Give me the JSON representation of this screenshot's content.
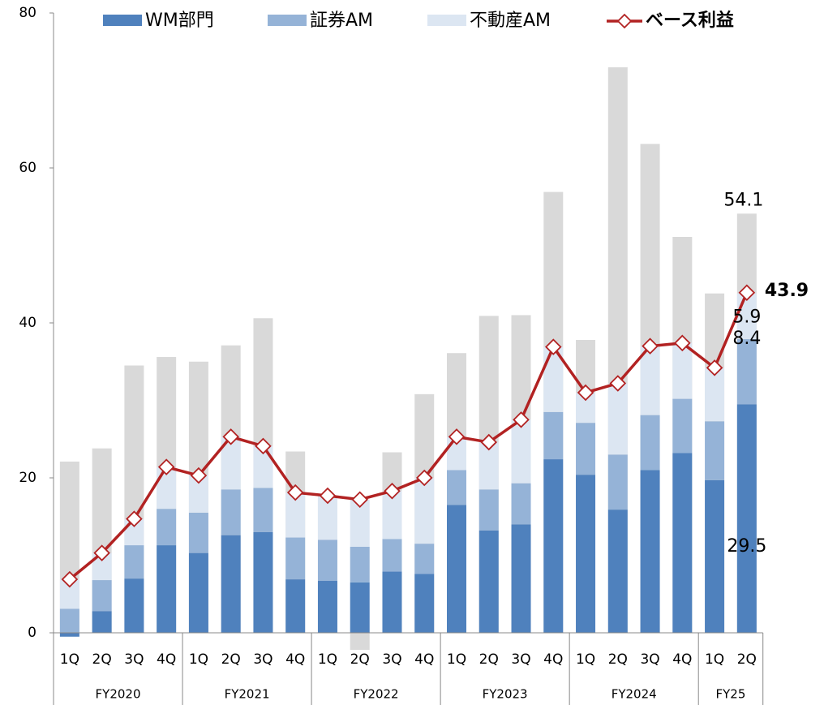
{
  "chart_data": {
    "type": "bar",
    "groups": [
      {
        "name": "FY2020",
        "categories": [
          "1Q",
          "2Q",
          "3Q",
          "4Q"
        ]
      },
      {
        "name": "FY2021",
        "categories": [
          "1Q",
          "2Q",
          "3Q",
          "4Q"
        ]
      },
      {
        "name": "FY2022",
        "categories": [
          "1Q",
          "2Q",
          "3Q",
          "4Q"
        ]
      },
      {
        "name": "FY2023",
        "categories": [
          "1Q",
          "2Q",
          "3Q",
          "4Q"
        ]
      },
      {
        "name": "FY2024",
        "categories": [
          "1Q",
          "2Q",
          "3Q",
          "4Q"
        ]
      },
      {
        "name": "FY25",
        "categories": [
          "1Q",
          "2Q"
        ]
      }
    ],
    "total": {
      "color": "#d9d9d9",
      "values": [
        22.1,
        23.8,
        34.5,
        35.6,
        35.0,
        37.1,
        40.6,
        23.4,
        17.4,
        -2.2,
        23.3,
        30.8,
        36.1,
        40.9,
        41.0,
        56.9,
        37.8,
        73.0,
        63.1,
        51.1,
        43.8,
        54.1
      ]
    },
    "series": [
      {
        "name": "WM部門",
        "color": "#4f81bd",
        "values": [
          -0.5,
          2.8,
          7.0,
          11.3,
          10.3,
          12.6,
          13.0,
          6.9,
          6.7,
          6.5,
          7.9,
          7.6,
          16.5,
          13.2,
          14.0,
          22.4,
          20.4,
          15.9,
          21.0,
          23.2,
          19.7,
          29.5
        ]
      },
      {
        "name": "証券AM",
        "color": "#95b3d7",
        "values": [
          3.1,
          4.0,
          4.3,
          4.7,
          5.2,
          5.9,
          5.7,
          5.4,
          5.3,
          4.6,
          4.2,
          3.9,
          4.5,
          5.3,
          5.3,
          6.1,
          6.7,
          7.1,
          7.1,
          7.0,
          7.6,
          8.4
        ]
      },
      {
        "name": "不動産AM",
        "color": "#dce6f2",
        "values": [
          3.8,
          3.5,
          3.4,
          5.4,
          4.8,
          6.8,
          5.4,
          5.8,
          5.7,
          6.1,
          6.2,
          8.5,
          4.3,
          6.1,
          8.2,
          8.4,
          3.9,
          9.2,
          8.9,
          7.2,
          6.9,
          5.9
        ]
      }
    ],
    "line": {
      "name": "ベース利益",
      "color": "#b22222",
      "values": [
        6.9,
        10.3,
        14.7,
        21.4,
        20.3,
        25.3,
        24.1,
        18.1,
        17.7,
        17.2,
        18.3,
        20.0,
        25.3,
        24.6,
        27.5,
        36.9,
        31.0,
        32.2,
        37.0,
        37.4,
        34.2,
        43.9
      ]
    },
    "ylim": [
      0,
      80
    ],
    "yticks": [
      0,
      20,
      40,
      60,
      80
    ]
  }
}
